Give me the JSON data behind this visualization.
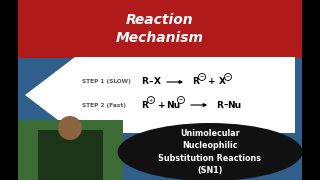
{
  "bg_color": "#2f5f8a",
  "title_box_color": "#b01a1a",
  "title_text": "Reaction\nMechanism",
  "title_text_color": "#ffffff",
  "white_diamond_color": "#ffffff",
  "step1_label": "STEP 1 (SLOW)",
  "step2_label": "STEP 2 (Fast)",
  "bottom_ellipse_color": "#111111",
  "bottom_text": "Unimolecular\nNucleophilic\nSubstitution Reactions\n(SN1)",
  "bottom_text_color": "#ffffff",
  "label_color": "#555555",
  "eq_color": "#000000",
  "figsize": [
    3.2,
    1.8
  ],
  "dpi": 100
}
